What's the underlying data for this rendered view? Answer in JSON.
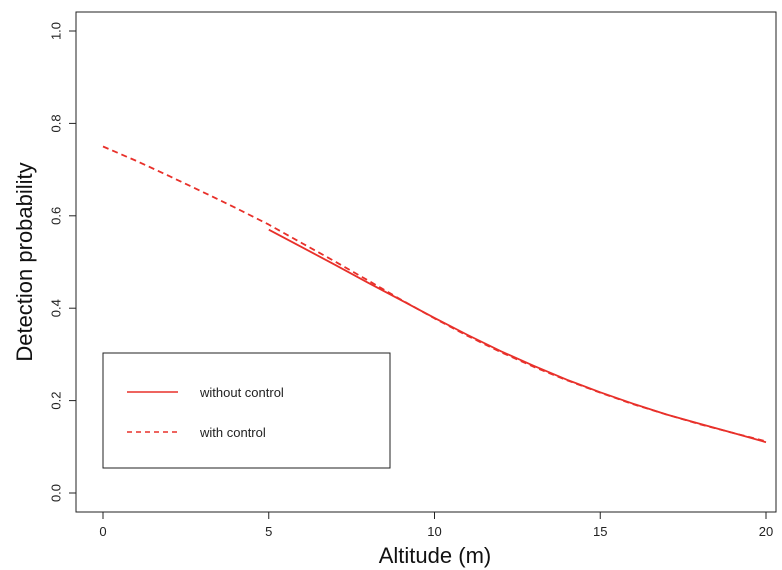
{
  "chart_data": {
    "type": "line",
    "title": "",
    "xlabel": "Altitude (m)",
    "ylabel": "Detection probability",
    "xlim": [
      0,
      20
    ],
    "ylim": [
      0,
      1
    ],
    "xticks": [
      0,
      5,
      10,
      15,
      20
    ],
    "yticks": [
      0.0,
      0.2,
      0.4,
      0.6,
      0.8,
      1.0
    ],
    "ytick_labels": [
      "0.0",
      "0.2",
      "0.4",
      "0.6",
      "0.8",
      "1.0"
    ],
    "xtick_labels": [
      "0",
      "5",
      "10",
      "15",
      "20"
    ],
    "grid": false,
    "legend_position": "bottom-left",
    "series": [
      {
        "name": "without control",
        "style": "solid",
        "color": "#e8302a",
        "x": [
          5,
          6,
          7,
          8,
          9,
          10,
          11,
          12,
          13,
          14,
          15,
          16,
          17,
          18,
          19,
          20
        ],
        "y": [
          0.57,
          0.532,
          0.494,
          0.455,
          0.417,
          0.379,
          0.342,
          0.307,
          0.275,
          0.245,
          0.218,
          0.193,
          0.17,
          0.15,
          0.13,
          0.11
        ]
      },
      {
        "name": "with control",
        "style": "dashed",
        "color": "#e8302a",
        "x": [
          0,
          1,
          2,
          3,
          4,
          5,
          6,
          7,
          8,
          9,
          10,
          11,
          12,
          13,
          14,
          15,
          16,
          17,
          18,
          19,
          20
        ],
        "y": [
          0.75,
          0.719,
          0.686,
          0.652,
          0.617,
          0.581,
          0.541,
          0.501,
          0.46,
          0.418,
          0.378,
          0.34,
          0.305,
          0.273,
          0.244,
          0.217,
          0.192,
          0.17,
          0.149,
          0.13,
          0.112
        ]
      }
    ]
  }
}
